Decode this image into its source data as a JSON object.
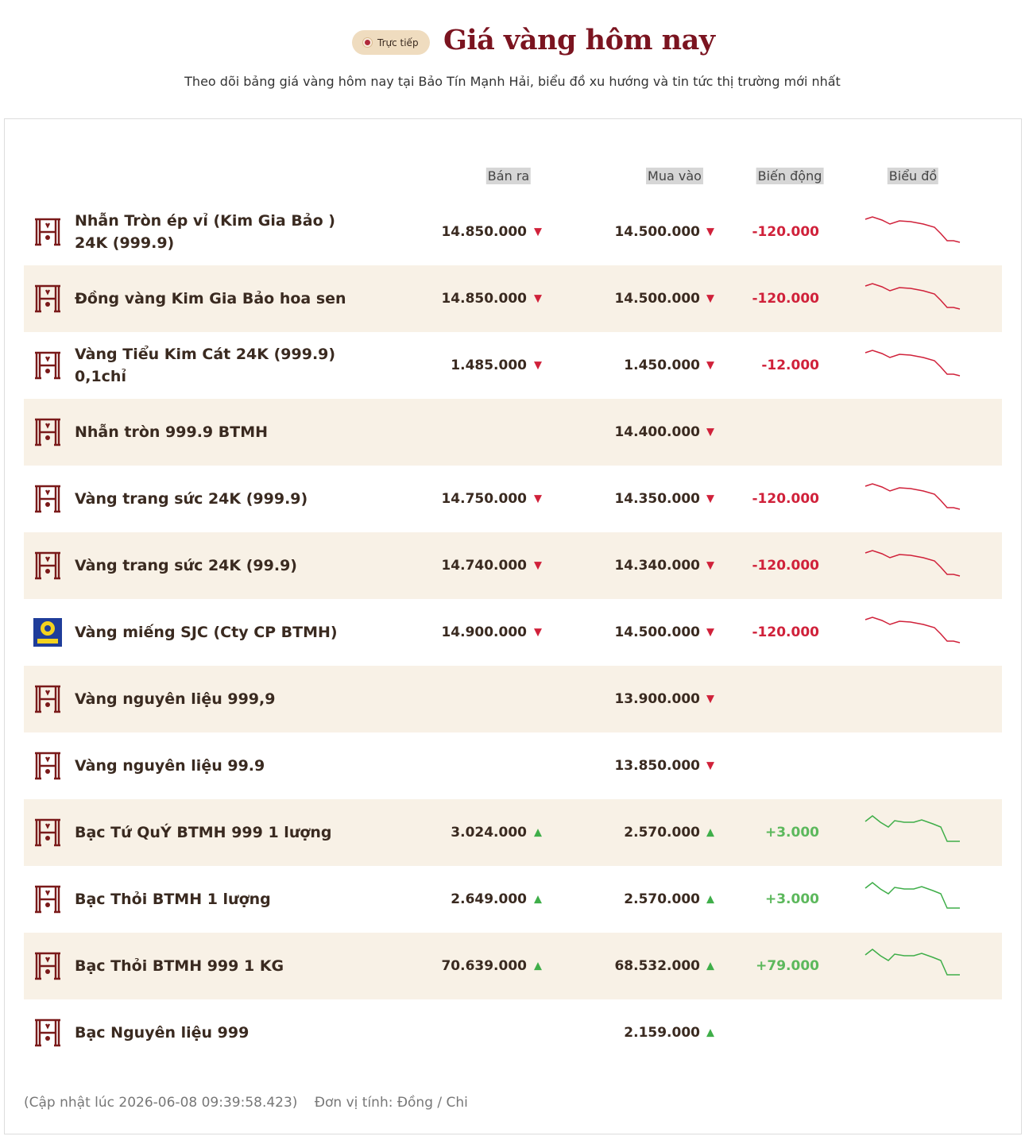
{
  "header": {
    "badge": "Trực tiếp",
    "title": "Giá vàng hôm nay",
    "subtitle": "Theo dõi bảng giá vàng hôm nay tại Bảo Tín Mạnh Hải, biểu đồ xu hướng và tin tức thị trường mới nhất"
  },
  "table": {
    "columns": {
      "sell": "Bán ra",
      "buy": "Mua vào",
      "change": "Biến động",
      "chart": "Biểu đồ"
    },
    "rows": [
      {
        "name": "Nhẫn Tròn ép vỉ (Kim Gia Bảo ) 24K (999.9)",
        "sell": "14.850.000",
        "sell_trend": "▼",
        "buy": "14.500.000",
        "buy_trend": "▼",
        "change": "-120.000"
      },
      {
        "name": "Đồng vàng Kim Gia Bảo hoa sen",
        "sell": "14.850.000",
        "sell_trend": "▼",
        "buy": "14.500.000",
        "buy_trend": "▼",
        "change": "-120.000"
      },
      {
        "name": "Vàng Tiểu Kim Cát 24K (999.9) 0,1chỉ",
        "sell": "1.485.000",
        "sell_trend": "▼",
        "buy": "1.450.000",
        "buy_trend": "▼",
        "change": "-12.000"
      },
      {
        "name": "Nhẫn tròn 999.9 BTMH",
        "buy": "14.400.000",
        "buy_trend": "▼"
      },
      {
        "name": "Vàng trang sức 24K (999.9)",
        "sell": "14.750.000",
        "sell_trend": "▼",
        "buy": "14.350.000",
        "buy_trend": "▼",
        "change": "-120.000"
      },
      {
        "name": "Vàng trang sức 24K (99.9)",
        "sell": "14.740.000",
        "sell_trend": "▼",
        "buy": "14.340.000",
        "buy_trend": "▼",
        "change": "-120.000"
      },
      {
        "name": "Vàng miếng SJC (Cty CP BTMH)",
        "sell": "14.900.000",
        "sell_trend": "▼",
        "buy": "14.500.000",
        "buy_trend": "▼",
        "change": "-120.000"
      },
      {
        "name": "Vàng nguyên liệu 999,9",
        "buy": "13.900.000",
        "buy_trend": "▼"
      },
      {
        "name": "Vàng nguyên liệu 99.9",
        "buy": "13.850.000",
        "buy_trend": "▼"
      },
      {
        "name": "Bạc Tứ QuÝ BTMH 999 1 lượng",
        "sell": "3.024.000",
        "sell_trend": "▲",
        "buy": "2.570.000",
        "buy_trend": "▲",
        "change": "+3.000"
      },
      {
        "name": "Bạc Thỏi BTMH 1 lượng",
        "sell": "2.649.000",
        "sell_trend": "▲",
        "buy": "2.570.000",
        "buy_trend": "▲",
        "change": "+3.000"
      },
      {
        "name": "Bạc Thỏi BTMH 999 1 KG",
        "sell": "70.639.000",
        "sell_trend": "▲",
        "buy": "68.532.000",
        "buy_trend": "▲",
        "change": "+79.000"
      },
      {
        "name": "Bạc Nguyên liệu 999",
        "buy": "2.159.000",
        "buy_trend": "▲"
      }
    ]
  },
  "footer": {
    "updated": "(Cập nhật lúc 2026-06-08 09:39:58.423)",
    "unit": "Đơn vị tính: Đồng / Chi"
  }
}
